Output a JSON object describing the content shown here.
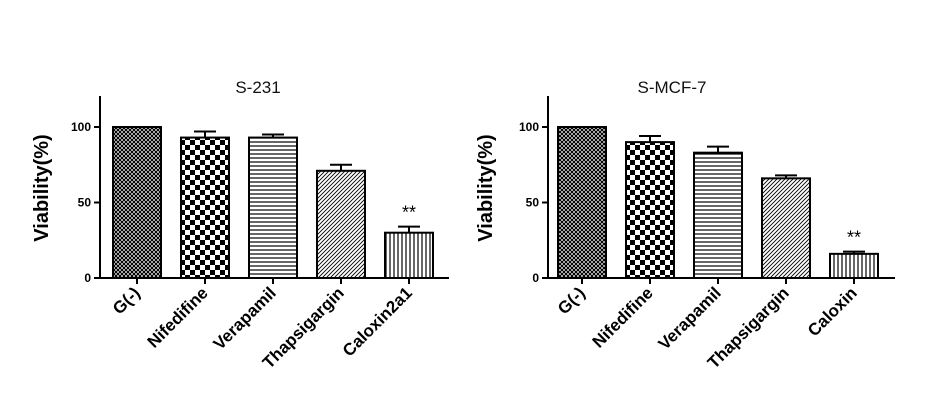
{
  "chart_data": [
    {
      "type": "bar",
      "title": "S-231",
      "ylabel": "Viability(%)",
      "xlabel": "",
      "ylim": [
        0,
        120
      ],
      "yticks": [
        0,
        50,
        100
      ],
      "categories": [
        "G(-)",
        "Nifedifine",
        "Verapamil",
        "Thapsigargin",
        "Caloxin2a1"
      ],
      "values": [
        100,
        93,
        93,
        71,
        30
      ],
      "errors": [
        0,
        4,
        2,
        4,
        4
      ],
      "patterns": [
        "crosshatch",
        "checker",
        "hstripe",
        "diag",
        "vstripe"
      ],
      "annotations": [
        {
          "category": "Caloxin2a1",
          "text": "**"
        }
      ],
      "grid": false
    },
    {
      "type": "bar",
      "title": "S-MCF-7",
      "ylabel": "Viability(%)",
      "xlabel": "",
      "ylim": [
        0,
        120
      ],
      "yticks": [
        0,
        50,
        100
      ],
      "categories": [
        "G(-)",
        "Nifedifine",
        "Verapamil",
        "Thapsigargin",
        "Caloxin"
      ],
      "values": [
        100,
        90,
        83,
        66,
        16
      ],
      "errors": [
        0,
        4,
        4,
        2,
        1.5
      ],
      "patterns": [
        "crosshatch",
        "checker",
        "hstripe",
        "diag",
        "vstripe"
      ],
      "annotations": [
        {
          "category": "Caloxin",
          "text": "**"
        }
      ],
      "grid": false
    }
  ]
}
